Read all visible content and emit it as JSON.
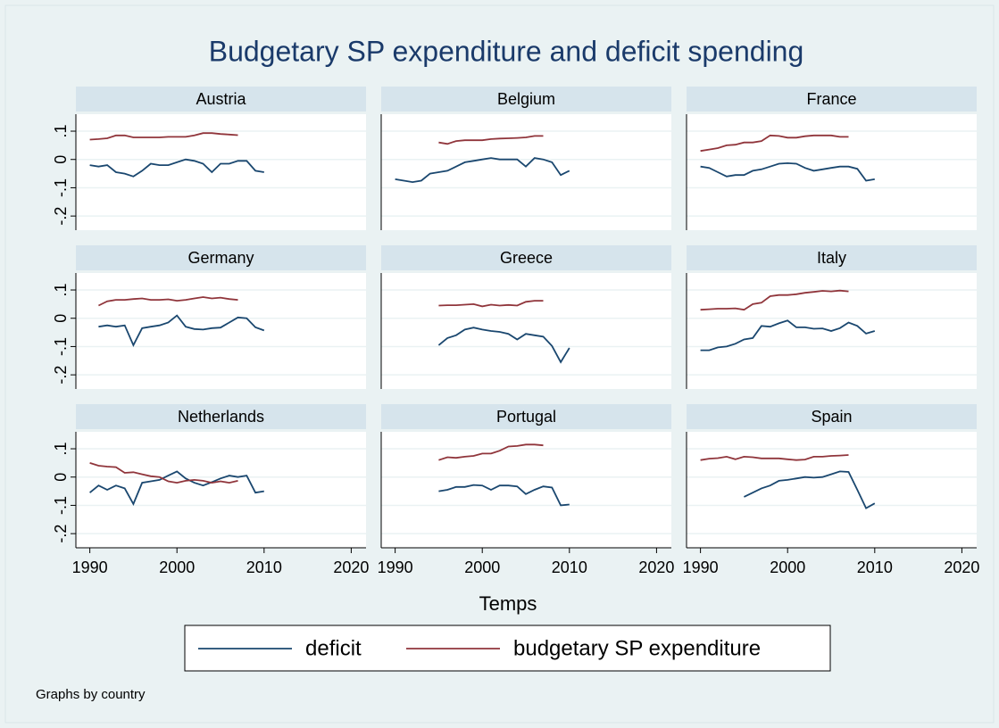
{
  "chart_data": {
    "type": "line",
    "title": "Budgetary SP expenditure and deficit spending",
    "xlabel": "Temps",
    "note": "Graphs by country",
    "x": [
      1990,
      1991,
      1992,
      1993,
      1994,
      1995,
      1996,
      1997,
      1998,
      1999,
      2000,
      2001,
      2002,
      2003,
      2004,
      2005,
      2006,
      2007,
      2008,
      2009,
      2010
    ],
    "xlim": [
      1988.4,
      2021.7
    ],
    "xticks": [
      1990,
      2000,
      2010,
      2020
    ],
    "ylim": [
      -0.25,
      0.16
    ],
    "yticks": [
      {
        "value": 0.1,
        "label": ".1"
      },
      0,
      {
        "value": -0.1,
        "label": "-.1"
      },
      {
        "value": -0.2,
        "label": "-.2"
      }
    ],
    "grid": true,
    "series": [
      {
        "name": "deficit",
        "color": "#1a476f"
      },
      {
        "name": "budgetary SP expenditure",
        "color": "#90353b"
      }
    ],
    "panels": [
      {
        "title": "Austria",
        "series": [
          {
            "values": [
              -0.02,
              -0.025,
              -0.02,
              -0.045,
              -0.05,
              -0.06,
              -0.04,
              -0.015,
              -0.02,
              -0.02,
              -0.01,
              0,
              -0.005,
              -0.015,
              -0.045,
              -0.015,
              -0.015,
              -0.005,
              -0.005,
              -0.04,
              -0.045
            ]
          },
          {
            "values": [
              0.07,
              0.072,
              0.075,
              0.085,
              0.085,
              0.078,
              0.078,
              0.078,
              0.078,
              0.08,
              0.08,
              0.08,
              0.085,
              0.093,
              0.093,
              0.09,
              0.088,
              0.086,
              null,
              null,
              null
            ]
          }
        ]
      },
      {
        "title": "Belgium",
        "series": [
          {
            "values": [
              -0.07,
              -0.075,
              -0.08,
              -0.075,
              -0.05,
              -0.045,
              -0.04,
              -0.025,
              -0.01,
              -0.005,
              0,
              0.005,
              0,
              0,
              0,
              -0.025,
              0.005,
              0,
              -0.01,
              -0.055,
              -0.04
            ]
          },
          {
            "values": [
              null,
              null,
              null,
              null,
              null,
              0.06,
              0.055,
              0.065,
              0.068,
              0.068,
              0.068,
              0.072,
              0.074,
              0.075,
              0.076,
              0.078,
              0.083,
              0.083,
              null,
              null,
              null
            ]
          }
        ]
      },
      {
        "title": "France",
        "series": [
          {
            "values": [
              -0.025,
              -0.03,
              -0.045,
              -0.06,
              -0.055,
              -0.055,
              -0.04,
              -0.035,
              -0.025,
              -0.015,
              -0.013,
              -0.015,
              -0.03,
              -0.04,
              -0.035,
              -0.03,
              -0.025,
              -0.025,
              -0.033,
              -0.075,
              -0.07
            ]
          },
          {
            "values": [
              0.03,
              0.035,
              0.04,
              0.05,
              0.052,
              0.06,
              0.06,
              0.065,
              0.085,
              0.083,
              0.077,
              0.077,
              0.082,
              0.085,
              0.085,
              0.085,
              0.08,
              0.08,
              null,
              null,
              null
            ]
          }
        ]
      },
      {
        "title": "Germany",
        "series": [
          {
            "values": [
              null,
              -0.03,
              -0.025,
              -0.03,
              -0.025,
              -0.095,
              -0.035,
              -0.03,
              -0.025,
              -0.015,
              0.01,
              -0.03,
              -0.038,
              -0.04,
              -0.035,
              -0.033,
              -0.015,
              0.003,
              0,
              -0.032,
              -0.043
            ]
          },
          {
            "values": [
              null,
              0.045,
              0.06,
              0.065,
              0.065,
              0.068,
              0.07,
              0.065,
              0.065,
              0.067,
              0.062,
              0.065,
              0.07,
              0.075,
              0.07,
              0.073,
              0.068,
              0.065,
              null,
              null,
              null
            ]
          }
        ]
      },
      {
        "title": "Greece",
        "series": [
          {
            "values": [
              null,
              null,
              null,
              null,
              null,
              -0.095,
              -0.07,
              -0.06,
              -0.04,
              -0.033,
              -0.04,
              -0.045,
              -0.048,
              -0.055,
              -0.075,
              -0.055,
              -0.06,
              -0.065,
              -0.098,
              -0.155,
              -0.105
            ]
          },
          {
            "values": [
              null,
              null,
              null,
              null,
              null,
              0.045,
              0.046,
              0.046,
              0.048,
              0.05,
              0.042,
              0.048,
              0.045,
              0.047,
              0.045,
              0.058,
              0.062,
              0.062,
              null,
              null,
              null
            ]
          }
        ]
      },
      {
        "title": "Italy",
        "series": [
          {
            "values": [
              -0.113,
              -0.113,
              -0.103,
              -0.1,
              -0.09,
              -0.075,
              -0.07,
              -0.027,
              -0.03,
              -0.018,
              -0.008,
              -0.032,
              -0.032,
              -0.037,
              -0.036,
              -0.045,
              -0.035,
              -0.015,
              -0.027,
              -0.054,
              -0.045
            ]
          },
          {
            "values": [
              0.03,
              0.032,
              0.034,
              0.034,
              0.035,
              0.03,
              0.05,
              0.055,
              0.078,
              0.082,
              0.082,
              0.085,
              0.09,
              0.093,
              0.097,
              0.095,
              0.098,
              0.095,
              null,
              null,
              null
            ]
          }
        ]
      },
      {
        "title": "Netherlands",
        "series": [
          {
            "values": [
              -0.055,
              -0.03,
              -0.045,
              -0.03,
              -0.04,
              -0.095,
              -0.02,
              -0.015,
              -0.01,
              0.005,
              0.02,
              -0.005,
              -0.02,
              -0.03,
              -0.018,
              -0.005,
              0.005,
              0,
              0.005,
              -0.055,
              -0.05
            ]
          },
          {
            "values": [
              0.05,
              0.04,
              0.037,
              0.035,
              0.015,
              0.017,
              0.01,
              0.003,
              0,
              -0.015,
              -0.02,
              -0.013,
              -0.01,
              -0.013,
              -0.02,
              -0.015,
              -0.02,
              -0.013,
              null,
              null,
              null
            ]
          }
        ]
      },
      {
        "title": "Portugal",
        "series": [
          {
            "values": [
              null,
              null,
              null,
              null,
              null,
              -0.05,
              -0.045,
              -0.035,
              -0.035,
              -0.028,
              -0.03,
              -0.045,
              -0.03,
              -0.03,
              -0.033,
              -0.06,
              -0.045,
              -0.033,
              -0.037,
              -0.1,
              -0.097
            ]
          },
          {
            "values": [
              null,
              null,
              null,
              null,
              null,
              0.06,
              0.07,
              0.068,
              0.072,
              0.075,
              0.083,
              0.083,
              0.093,
              0.108,
              0.11,
              0.115,
              0.115,
              0.112,
              null,
              null,
              null
            ]
          }
        ]
      },
      {
        "title": "Spain",
        "series": [
          {
            "values": [
              null,
              null,
              null,
              null,
              null,
              -0.07,
              -0.055,
              -0.04,
              -0.03,
              -0.013,
              -0.01,
              -0.005,
              0,
              -0.002,
              0,
              0.01,
              0.02,
              0.018,
              -0.045,
              -0.11,
              -0.093
            ]
          },
          {
            "values": [
              0.06,
              0.065,
              0.067,
              0.072,
              0.063,
              0.072,
              0.07,
              0.066,
              0.066,
              0.066,
              0.063,
              0.06,
              0.062,
              0.072,
              0.072,
              0.075,
              0.076,
              0.078,
              null,
              null,
              null
            ]
          }
        ]
      }
    ]
  }
}
